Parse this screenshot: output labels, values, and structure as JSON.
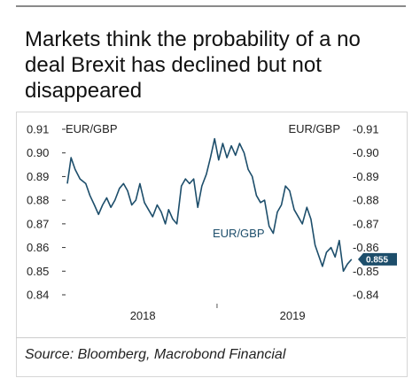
{
  "title": "Markets think the probability of a no deal Brexit has declined but not disappeared",
  "source": "Source: Bloomberg, Macrobond Financial",
  "colors": {
    "series": "#1d4e6b",
    "axis": "#333333",
    "badge": "#1d4e6b"
  },
  "chart_data": {
    "type": "line",
    "title": "Markets think the probability of a no deal Brexit has declined but not disappeared",
    "left_axis_label": "EUR/GBP",
    "right_axis_label": "EUR/GBP",
    "series_label": "EUR/GBP",
    "last_value_label": "0.855",
    "ylim": [
      0.84,
      0.91
    ],
    "y_ticks": [
      "0.91",
      "0.90",
      "0.89",
      "0.88",
      "0.87",
      "0.86",
      "0.85",
      "0.84"
    ],
    "right_ticks": [
      "-0.91",
      "-0.90",
      "-0.89",
      "-0.88",
      "-0.87",
      "-0.86",
      "-0.85",
      "-0.84"
    ],
    "xlim": [
      "2017-07-01",
      "2019-06-01"
    ],
    "x_labels": [
      {
        "date": "2018-01-01",
        "text": "2018"
      },
      {
        "date": "2019-01-01",
        "text": "2019"
      }
    ],
    "x_minor_ticks": [
      "2018-07-01"
    ],
    "series": [
      {
        "name": "EUR/GBP",
        "points": [
          [
            "2017-07-01",
            0.887
          ],
          [
            "2017-07-10",
            0.898
          ],
          [
            "2017-07-20",
            0.893
          ],
          [
            "2017-08-01",
            0.889
          ],
          [
            "2017-08-15",
            0.887
          ],
          [
            "2017-08-25",
            0.882
          ],
          [
            "2017-09-05",
            0.878
          ],
          [
            "2017-09-15",
            0.874
          ],
          [
            "2017-09-25",
            0.878
          ],
          [
            "2017-10-05",
            0.881
          ],
          [
            "2017-10-15",
            0.877
          ],
          [
            "2017-10-25",
            0.88
          ],
          [
            "2017-11-05",
            0.885
          ],
          [
            "2017-11-15",
            0.887
          ],
          [
            "2017-11-25",
            0.884
          ],
          [
            "2017-12-05",
            0.878
          ],
          [
            "2017-12-15",
            0.88
          ],
          [
            "2017-12-25",
            0.887
          ],
          [
            "2018-01-05",
            0.879
          ],
          [
            "2018-01-15",
            0.876
          ],
          [
            "2018-01-25",
            0.873
          ],
          [
            "2018-02-05",
            0.878
          ],
          [
            "2018-02-15",
            0.875
          ],
          [
            "2018-02-25",
            0.87
          ],
          [
            "2018-03-05",
            0.876
          ],
          [
            "2018-03-15",
            0.872
          ],
          [
            "2018-03-25",
            0.87
          ],
          [
            "2018-04-05",
            0.886
          ],
          [
            "2018-04-15",
            0.889
          ],
          [
            "2018-04-25",
            0.887
          ],
          [
            "2018-05-05",
            0.889
          ],
          [
            "2018-05-15",
            0.877
          ],
          [
            "2018-05-25",
            0.886
          ],
          [
            "2018-06-05",
            0.891
          ],
          [
            "2018-06-15",
            0.898
          ],
          [
            "2018-06-25",
            0.906
          ],
          [
            "2018-07-05",
            0.897
          ],
          [
            "2018-07-15",
            0.904
          ],
          [
            "2018-07-25",
            0.898
          ],
          [
            "2018-08-05",
            0.903
          ],
          [
            "2018-08-15",
            0.899
          ],
          [
            "2018-08-25",
            0.904
          ],
          [
            "2018-09-05",
            0.9
          ],
          [
            "2018-09-15",
            0.893
          ],
          [
            "2018-09-25",
            0.89
          ],
          [
            "2018-10-05",
            0.882
          ],
          [
            "2018-10-15",
            0.879
          ],
          [
            "2018-10-25",
            0.88
          ],
          [
            "2018-11-05",
            0.869
          ],
          [
            "2018-11-15",
            0.866
          ],
          [
            "2018-11-25",
            0.875
          ],
          [
            "2018-12-05",
            0.878
          ],
          [
            "2018-12-15",
            0.886
          ],
          [
            "2018-12-25",
            0.884
          ],
          [
            "2019-01-05",
            0.876
          ],
          [
            "2019-01-15",
            0.873
          ],
          [
            "2019-01-25",
            0.87
          ],
          [
            "2019-02-05",
            0.877
          ],
          [
            "2019-02-15",
            0.872
          ],
          [
            "2019-02-25",
            0.861
          ],
          [
            "2019-03-05",
            0.857
          ],
          [
            "2019-03-15",
            0.852
          ],
          [
            "2019-03-25",
            0.858
          ],
          [
            "2019-04-05",
            0.86
          ],
          [
            "2019-04-15",
            0.856
          ],
          [
            "2019-04-25",
            0.863
          ],
          [
            "2019-05-05",
            0.85
          ],
          [
            "2019-05-15",
            0.853
          ],
          [
            "2019-05-25",
            0.855
          ]
        ]
      }
    ]
  }
}
